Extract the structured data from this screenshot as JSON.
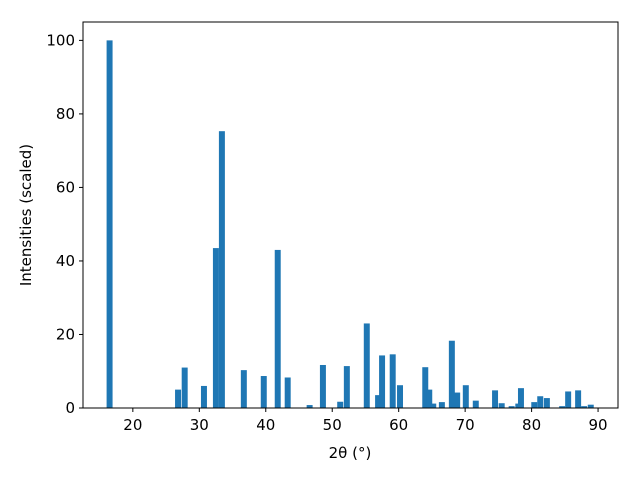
{
  "chart_data": {
    "type": "bar",
    "xlabel": "2θ (°)",
    "ylabel": "Intensities (scaled)",
    "x": [
      16.5,
      26.8,
      27.8,
      30.7,
      32.5,
      33.4,
      36.7,
      39.7,
      41.8,
      43.3,
      46.6,
      48.6,
      51.2,
      52.2,
      55.2,
      56.9,
      57.5,
      59.1,
      60.2,
      64.0,
      64.6,
      65.2,
      66.5,
      68.0,
      68.8,
      70.1,
      71.6,
      74.5,
      75.5,
      77.0,
      78.0,
      78.4,
      80.4,
      81.3,
      82.3,
      84.6,
      85.5,
      87.0,
      87.9,
      88.9
    ],
    "values": [
      100,
      5,
      11,
      6,
      43.5,
      75.3,
      10.3,
      8.7,
      43,
      8.3,
      0.8,
      11.7,
      1.7,
      11.4,
      23,
      3.5,
      14.3,
      14.6,
      6.2,
      11.1,
      5,
      1.2,
      1.6,
      18.3,
      4.2,
      6.2,
      2,
      4.8,
      1.3,
      0.5,
      1.2,
      5.4,
      1.6,
      3.2,
      2.7,
      0.5,
      4.5,
      4.8,
      0.5,
      0.9
    ],
    "color": "#1f77b4",
    "xlim": [
      12.5,
      93.0
    ],
    "ylim": [
      0,
      105
    ],
    "xticks": [
      20,
      30,
      40,
      50,
      60,
      70,
      80,
      90
    ],
    "yticks": [
      0,
      20,
      40,
      60,
      80,
      100
    ]
  }
}
